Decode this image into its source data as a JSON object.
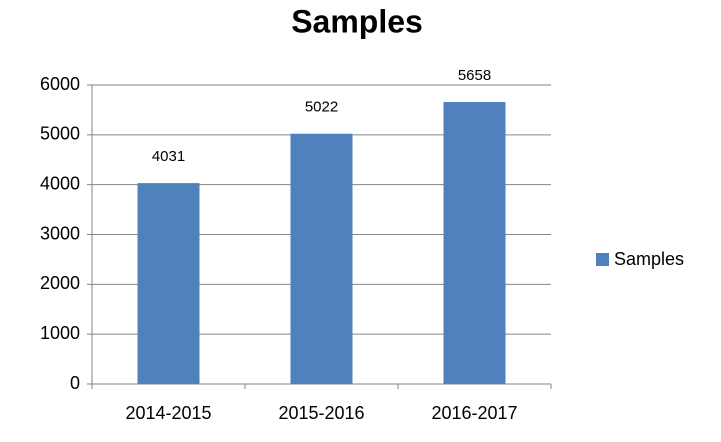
{
  "chart_data": {
    "type": "bar",
    "title": "Samples",
    "categories": [
      "2014-2015",
      "2015-2016",
      "2016-2017"
    ],
    "series": [
      {
        "name": "Samples",
        "color": "#4f81bd",
        "values": [
          4031,
          5022,
          5658
        ]
      }
    ],
    "ylim": [
      0,
      6000
    ],
    "yticks": [
      0,
      1000,
      2000,
      3000,
      4000,
      5000,
      6000
    ],
    "grid": true,
    "legend": "right",
    "data_labels": true
  }
}
